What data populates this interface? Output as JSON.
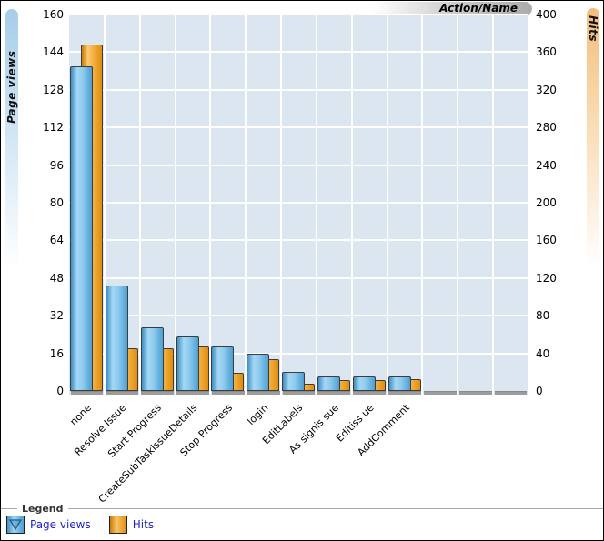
{
  "axis_pills": {
    "left_title": "Page views",
    "right_title": "Hits",
    "top_title": "Action/Name"
  },
  "chart_data": {
    "type": "bar",
    "title": "",
    "categories": [
      "none",
      "Resolve Issue",
      "Start Progress",
      "CreateSubTaskIssueDetails",
      "Stop Progress",
      "login",
      "EditLabels",
      "As signis sue",
      "Editiss ue",
      "AddComment"
    ],
    "series": [
      {
        "name": "Page views",
        "axis": "left",
        "values": [
          138,
          45,
          27,
          23,
          19,
          16,
          8,
          6,
          6,
          6
        ]
      },
      {
        "name": "Hits",
        "axis": "right",
        "values": [
          368,
          45,
          45,
          47,
          19,
          34,
          8,
          12,
          12,
          13
        ]
      }
    ],
    "left_axis": {
      "title": "Page views",
      "min": 0,
      "max": 160,
      "tick_step": 16
    },
    "right_axis": {
      "title": "Hits",
      "min": 0,
      "max": 400,
      "tick_step": 40
    },
    "x_axis": {
      "title": "Action/Name",
      "empty_trailing_slots": 3,
      "label_rotation_deg": -45
    },
    "grid": true,
    "legend_position": "bottom"
  },
  "legend": {
    "title": "Legend",
    "items": [
      {
        "label": "Page views",
        "swatch": "blue-square-triangle-down"
      },
      {
        "label": "Hits",
        "swatch": "orange-square"
      }
    ]
  },
  "colors": {
    "page_views_bar": "#58a9dc",
    "hits_bar": "#e8920e",
    "plot_background": "#dbe6f0",
    "gridline": "#ffffff",
    "platform": "#9c9c9c",
    "legend_text": "#2222cc"
  }
}
